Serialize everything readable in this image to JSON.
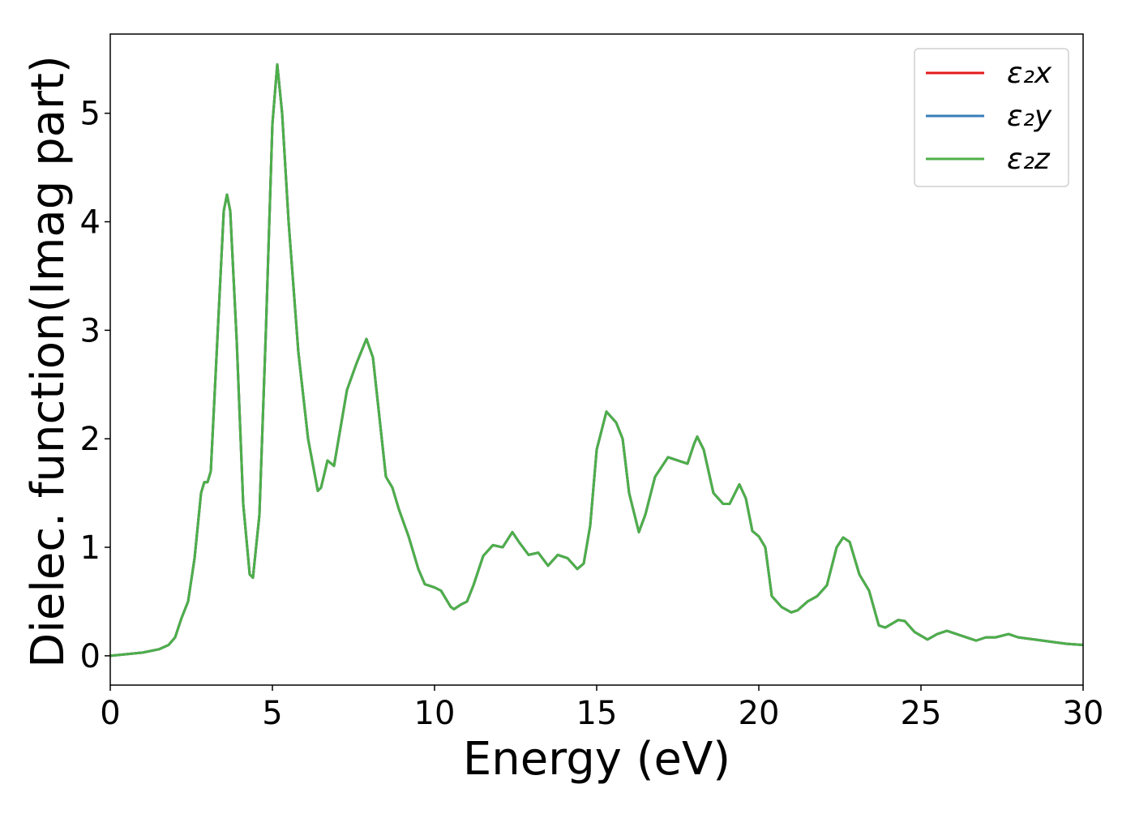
{
  "chart_data": {
    "type": "line",
    "xlabel": "Energy (eV)",
    "ylabel": "Dielec. function(Imag part)",
    "x": [
      0,
      1,
      1.5,
      1.8,
      2.0,
      2.2,
      2.4,
      2.6,
      2.8,
      2.9,
      3.0,
      3.1,
      3.3,
      3.5,
      3.6,
      3.7,
      3.9,
      4.1,
      4.3,
      4.4,
      4.6,
      4.8,
      5.0,
      5.15,
      5.3,
      5.5,
      5.8,
      6.1,
      6.4,
      6.5,
      6.7,
      6.9,
      7.1,
      7.3,
      7.6,
      7.9,
      8.1,
      8.3,
      8.5,
      8.7,
      8.9,
      9.2,
      9.5,
      9.7,
      10.0,
      10.2,
      10.5,
      10.6,
      10.8,
      11.0,
      11.2,
      11.5,
      11.8,
      12.1,
      12.4,
      12.6,
      12.9,
      13.2,
      13.5,
      13.8,
      14.1,
      14.4,
      14.6,
      14.8,
      15.0,
      15.3,
      15.6,
      15.8,
      16.0,
      16.3,
      16.5,
      16.8,
      17.2,
      17.5,
      17.8,
      18.0,
      18.1,
      18.3,
      18.6,
      18.9,
      19.1,
      19.4,
      19.6,
      19.8,
      20.0,
      20.2,
      20.4,
      20.7,
      21.0,
      21.2,
      21.5,
      21.8,
      22.1,
      22.4,
      22.6,
      22.8,
      23.1,
      23.4,
      23.7,
      23.9,
      24.3,
      24.5,
      24.8,
      25.2,
      25.5,
      25.8,
      26.2,
      26.5,
      26.7,
      27.0,
      27.3,
      27.7,
      28.0,
      28.5,
      29.0,
      29.5,
      30.0
    ],
    "series": [
      {
        "name": "ε₂x",
        "color": "#e41a1c",
        "values": [
          0,
          0.03,
          0.06,
          0.1,
          0.17,
          0.35,
          0.5,
          0.9,
          1.5,
          1.6,
          1.6,
          1.7,
          2.9,
          4.1,
          4.25,
          4.1,
          2.9,
          1.4,
          0.75,
          0.72,
          1.3,
          3.0,
          4.9,
          5.45,
          5.0,
          4.0,
          2.8,
          2.0,
          1.52,
          1.55,
          1.8,
          1.75,
          2.1,
          2.45,
          2.7,
          2.92,
          2.75,
          2.2,
          1.65,
          1.55,
          1.35,
          1.1,
          0.8,
          0.66,
          0.63,
          0.6,
          0.45,
          0.43,
          0.47,
          0.5,
          0.65,
          0.92,
          1.02,
          1.0,
          1.14,
          1.05,
          0.93,
          0.95,
          0.83,
          0.93,
          0.9,
          0.8,
          0.85,
          1.2,
          1.9,
          2.25,
          2.15,
          2.0,
          1.5,
          1.14,
          1.3,
          1.65,
          1.83,
          1.8,
          1.77,
          1.95,
          2.02,
          1.9,
          1.5,
          1.4,
          1.4,
          1.58,
          1.45,
          1.15,
          1.1,
          1.0,
          0.55,
          0.45,
          0.4,
          0.42,
          0.5,
          0.55,
          0.65,
          1.0,
          1.09,
          1.05,
          0.75,
          0.6,
          0.28,
          0.26,
          0.33,
          0.32,
          0.22,
          0.15,
          0.2,
          0.23,
          0.19,
          0.16,
          0.14,
          0.17,
          0.17,
          0.2,
          0.17,
          0.15,
          0.13,
          0.11,
          0.1
        ]
      },
      {
        "name": "ε₂y",
        "color": "#377eb8",
        "values": [
          0,
          0.03,
          0.06,
          0.1,
          0.17,
          0.35,
          0.5,
          0.9,
          1.5,
          1.6,
          1.6,
          1.7,
          2.9,
          4.1,
          4.25,
          4.1,
          2.9,
          1.4,
          0.75,
          0.72,
          1.3,
          3.0,
          4.9,
          5.45,
          5.0,
          4.0,
          2.8,
          2.0,
          1.52,
          1.55,
          1.8,
          1.75,
          2.1,
          2.45,
          2.7,
          2.92,
          2.75,
          2.2,
          1.65,
          1.55,
          1.35,
          1.1,
          0.8,
          0.66,
          0.63,
          0.6,
          0.45,
          0.43,
          0.47,
          0.5,
          0.65,
          0.92,
          1.02,
          1.0,
          1.14,
          1.05,
          0.93,
          0.95,
          0.83,
          0.93,
          0.9,
          0.8,
          0.85,
          1.2,
          1.9,
          2.25,
          2.15,
          2.0,
          1.5,
          1.14,
          1.3,
          1.65,
          1.83,
          1.8,
          1.77,
          1.95,
          2.02,
          1.9,
          1.5,
          1.4,
          1.4,
          1.58,
          1.45,
          1.15,
          1.1,
          1.0,
          0.55,
          0.45,
          0.4,
          0.42,
          0.5,
          0.55,
          0.65,
          1.0,
          1.09,
          1.05,
          0.75,
          0.6,
          0.28,
          0.26,
          0.33,
          0.32,
          0.22,
          0.15,
          0.2,
          0.23,
          0.19,
          0.16,
          0.14,
          0.17,
          0.17,
          0.2,
          0.17,
          0.15,
          0.13,
          0.11,
          0.1
        ]
      },
      {
        "name": "ε₂z",
        "color": "#4daf4a",
        "values": [
          0,
          0.03,
          0.06,
          0.1,
          0.17,
          0.35,
          0.5,
          0.9,
          1.5,
          1.6,
          1.6,
          1.7,
          2.9,
          4.1,
          4.25,
          4.1,
          2.9,
          1.4,
          0.75,
          0.72,
          1.3,
          3.0,
          4.9,
          5.45,
          5.0,
          4.0,
          2.8,
          2.0,
          1.52,
          1.55,
          1.8,
          1.75,
          2.1,
          2.45,
          2.7,
          2.92,
          2.75,
          2.2,
          1.65,
          1.55,
          1.35,
          1.1,
          0.8,
          0.66,
          0.63,
          0.6,
          0.45,
          0.43,
          0.47,
          0.5,
          0.65,
          0.92,
          1.02,
          1.0,
          1.14,
          1.05,
          0.93,
          0.95,
          0.83,
          0.93,
          0.9,
          0.8,
          0.85,
          1.2,
          1.9,
          2.25,
          2.15,
          2.0,
          1.5,
          1.14,
          1.3,
          1.65,
          1.83,
          1.8,
          1.77,
          1.95,
          2.02,
          1.9,
          1.5,
          1.4,
          1.4,
          1.58,
          1.45,
          1.15,
          1.1,
          1.0,
          0.55,
          0.45,
          0.4,
          0.42,
          0.5,
          0.55,
          0.65,
          1.0,
          1.09,
          1.05,
          0.75,
          0.6,
          0.28,
          0.26,
          0.33,
          0.32,
          0.22,
          0.15,
          0.2,
          0.23,
          0.19,
          0.16,
          0.14,
          0.17,
          0.17,
          0.2,
          0.17,
          0.15,
          0.13,
          0.11,
          0.1
        ]
      }
    ],
    "xlim": [
      0,
      30
    ],
    "xticks": [
      0,
      5,
      10,
      15,
      20,
      25,
      30
    ],
    "ylim": [
      -0.27,
      5.73
    ],
    "yticks": [
      0,
      1,
      2,
      3,
      4,
      5
    ],
    "legend": "upper right",
    "grid": false
  }
}
